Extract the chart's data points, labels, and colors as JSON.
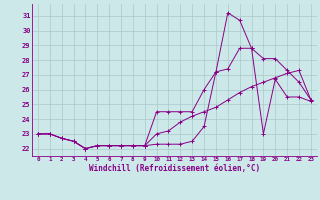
{
  "xlabel": "Windchill (Refroidissement éolien,°C)",
  "bg_color": "#cce8e8",
  "grid_color": "#aac8cc",
  "line_color": "#880088",
  "xlim": [
    -0.5,
    23.5
  ],
  "ylim": [
    21.5,
    31.8
  ],
  "yticks": [
    22,
    23,
    24,
    25,
    26,
    27,
    28,
    29,
    30,
    31
  ],
  "xticks": [
    0,
    1,
    2,
    3,
    4,
    5,
    6,
    7,
    8,
    9,
    10,
    11,
    12,
    13,
    14,
    15,
    16,
    17,
    18,
    19,
    20,
    21,
    22,
    23
  ],
  "series": [
    {
      "x": [
        0,
        1,
        2,
        3,
        4,
        5,
        6,
        7,
        8,
        9,
        10,
        11,
        12,
        13,
        14,
        15,
        16,
        17,
        18,
        19,
        20,
        21,
        22,
        23
      ],
      "y": [
        23,
        23,
        22.7,
        22.5,
        22.0,
        22.2,
        22.2,
        22.2,
        22.2,
        22.2,
        22.3,
        22.3,
        22.3,
        22.5,
        23.5,
        27.2,
        31.2,
        30.7,
        28.8,
        23.0,
        26.7,
        25.5,
        25.5,
        25.2
      ]
    },
    {
      "x": [
        0,
        1,
        2,
        3,
        4,
        5,
        6,
        7,
        8,
        9,
        10,
        11,
        12,
        13,
        14,
        15,
        16,
        17,
        18,
        19,
        20,
        21,
        22,
        23
      ],
      "y": [
        23,
        23,
        22.7,
        22.5,
        22.0,
        22.2,
        22.2,
        22.2,
        22.2,
        22.2,
        24.5,
        24.5,
        24.5,
        24.5,
        26.0,
        27.2,
        27.4,
        28.8,
        28.8,
        28.1,
        28.1,
        27.3,
        26.5,
        25.3
      ]
    },
    {
      "x": [
        0,
        1,
        2,
        3,
        4,
        5,
        6,
        7,
        8,
        9,
        10,
        11,
        12,
        13,
        14,
        15,
        16,
        17,
        18,
        19,
        20,
        21,
        22,
        23
      ],
      "y": [
        23,
        23,
        22.7,
        22.5,
        22.0,
        22.2,
        22.2,
        22.2,
        22.2,
        22.2,
        23.0,
        23.2,
        23.8,
        24.2,
        24.5,
        24.8,
        25.3,
        25.8,
        26.2,
        26.5,
        26.8,
        27.1,
        27.3,
        25.3
      ]
    }
  ]
}
